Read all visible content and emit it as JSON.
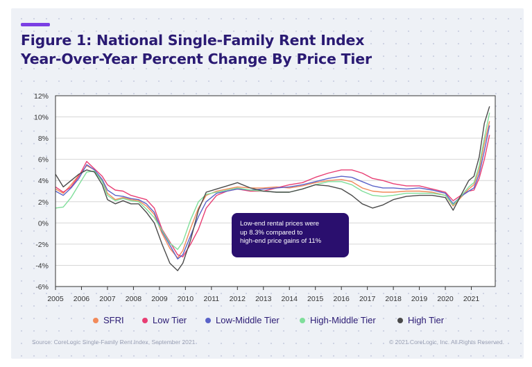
{
  "header": {
    "title_line1": "Figure 1: National Single-Family Rent Index",
    "title_line2": "Year-Over-Year Percent Change By Price Tier"
  },
  "colors": {
    "background": "#eef1f6",
    "accent": "#7b3fe4",
    "title": "#2a1a73",
    "callout_bg": "#2a0f6e"
  },
  "annotation": {
    "line1": "Low-end rental prices were",
    "line2": "up 8.3% compared to",
    "line3": "high-end price gains of 11%"
  },
  "footer": {
    "source": "Source: CoreLogic Single-Family Rent Index, September 2021",
    "copyright": "© 2021 CoreLogic, Inc. All Rights Reserved."
  },
  "chart_data": {
    "type": "line",
    "title": "Figure 1: National Single-Family Rent Index Year-Over-Year Percent Change By Price Tier",
    "xlabel": "",
    "ylabel": "",
    "xlim": [
      2005,
      2021.92
    ],
    "ylim": [
      -6,
      12
    ],
    "y_ticks": [
      "12%",
      "10%",
      "8%",
      "6%",
      "4%",
      "2%",
      "0%",
      "-2%",
      "-4%",
      "-6%"
    ],
    "y_tick_values": [
      12,
      10,
      8,
      6,
      4,
      2,
      0,
      -2,
      -4,
      -6
    ],
    "x_ticks": [
      "2005",
      "2006",
      "2007",
      "2008",
      "2009",
      "2010",
      "2011",
      "2012",
      "2013",
      "2014",
      "2015",
      "2016",
      "2017",
      "2018",
      "2019",
      "2020",
      "2021"
    ],
    "x_tick_values": [
      2005,
      2006,
      2007,
      2008,
      2009,
      2010,
      2011,
      2012,
      2013,
      2014,
      2015,
      2016,
      2017,
      2018,
      2019,
      2020,
      2021
    ],
    "grid": "horizontal",
    "legend_position": "bottom",
    "series": [
      {
        "name": "SFRI",
        "color": "#f28a5a",
        "points": [
          [
            2005.0,
            3.2
          ],
          [
            2005.3,
            2.8
          ],
          [
            2005.6,
            3.6
          ],
          [
            2005.9,
            4.5
          ],
          [
            2006.2,
            5.4
          ],
          [
            2006.5,
            5.0
          ],
          [
            2006.8,
            4.0
          ],
          [
            2007.0,
            2.8
          ],
          [
            2007.3,
            2.2
          ],
          [
            2007.6,
            2.4
          ],
          [
            2007.9,
            2.2
          ],
          [
            2008.2,
            2.1
          ],
          [
            2008.5,
            1.6
          ],
          [
            2008.8,
            0.8
          ],
          [
            2009.1,
            -1.0
          ],
          [
            2009.4,
            -2.4
          ],
          [
            2009.7,
            -3.3
          ],
          [
            2009.9,
            -2.6
          ],
          [
            2010.2,
            -0.5
          ],
          [
            2010.5,
            1.4
          ],
          [
            2010.8,
            2.6
          ],
          [
            2011.2,
            3.0
          ],
          [
            2011.6,
            3.2
          ],
          [
            2012.0,
            3.4
          ],
          [
            2012.5,
            3.3
          ],
          [
            2013.0,
            3.3
          ],
          [
            2013.5,
            3.4
          ],
          [
            2014.0,
            3.3
          ],
          [
            2014.5,
            3.5
          ],
          [
            2015.0,
            3.8
          ],
          [
            2015.5,
            4.0
          ],
          [
            2016.0,
            4.1
          ],
          [
            2016.4,
            3.9
          ],
          [
            2016.8,
            3.3
          ],
          [
            2017.2,
            3.0
          ],
          [
            2017.6,
            2.9
          ],
          [
            2018.0,
            2.9
          ],
          [
            2018.5,
            3.0
          ],
          [
            2019.0,
            3.0
          ],
          [
            2019.5,
            2.9
          ],
          [
            2020.0,
            2.6
          ],
          [
            2020.3,
            1.6
          ],
          [
            2020.6,
            2.4
          ],
          [
            2020.9,
            3.2
          ],
          [
            2021.1,
            3.6
          ],
          [
            2021.3,
            5.0
          ],
          [
            2021.5,
            7.5
          ],
          [
            2021.7,
            9.6
          ]
        ]
      },
      {
        "name": "Low Tier",
        "color": "#e83e73",
        "points": [
          [
            2005.0,
            3.4
          ],
          [
            2005.3,
            2.9
          ],
          [
            2005.6,
            3.4
          ],
          [
            2005.9,
            4.4
          ],
          [
            2006.2,
            5.8
          ],
          [
            2006.5,
            5.1
          ],
          [
            2006.8,
            4.4
          ],
          [
            2007.0,
            3.6
          ],
          [
            2007.3,
            3.1
          ],
          [
            2007.6,
            3.0
          ],
          [
            2007.9,
            2.6
          ],
          [
            2008.2,
            2.4
          ],
          [
            2008.5,
            2.2
          ],
          [
            2008.8,
            1.4
          ],
          [
            2009.1,
            -0.6
          ],
          [
            2009.4,
            -1.8
          ],
          [
            2009.7,
            -3.0
          ],
          [
            2009.9,
            -3.2
          ],
          [
            2010.2,
            -2.0
          ],
          [
            2010.5,
            -0.6
          ],
          [
            2010.8,
            1.4
          ],
          [
            2011.2,
            2.6
          ],
          [
            2011.6,
            3.0
          ],
          [
            2012.0,
            3.2
          ],
          [
            2012.5,
            3.0
          ],
          [
            2013.0,
            3.0
          ],
          [
            2013.5,
            3.3
          ],
          [
            2014.0,
            3.6
          ],
          [
            2014.5,
            3.8
          ],
          [
            2015.0,
            4.3
          ],
          [
            2015.5,
            4.7
          ],
          [
            2016.0,
            5.0
          ],
          [
            2016.4,
            5.0
          ],
          [
            2016.8,
            4.7
          ],
          [
            2017.2,
            4.2
          ],
          [
            2017.6,
            4.0
          ],
          [
            2018.0,
            3.7
          ],
          [
            2018.5,
            3.5
          ],
          [
            2019.0,
            3.5
          ],
          [
            2019.5,
            3.2
          ],
          [
            2020.0,
            2.9
          ],
          [
            2020.3,
            2.1
          ],
          [
            2020.6,
            2.6
          ],
          [
            2020.9,
            3.0
          ],
          [
            2021.1,
            3.1
          ],
          [
            2021.3,
            4.2
          ],
          [
            2021.5,
            6.0
          ],
          [
            2021.7,
            8.3
          ]
        ]
      },
      {
        "name": "Low-Middle Tier",
        "color": "#5a63c8",
        "points": [
          [
            2005.0,
            3.0
          ],
          [
            2005.3,
            2.6
          ],
          [
            2005.6,
            3.3
          ],
          [
            2005.9,
            4.2
          ],
          [
            2006.2,
            5.5
          ],
          [
            2006.5,
            5.0
          ],
          [
            2006.8,
            4.1
          ],
          [
            2007.0,
            3.1
          ],
          [
            2007.3,
            2.6
          ],
          [
            2007.6,
            2.5
          ],
          [
            2007.9,
            2.3
          ],
          [
            2008.2,
            2.2
          ],
          [
            2008.5,
            1.8
          ],
          [
            2008.8,
            1.0
          ],
          [
            2009.1,
            -0.8
          ],
          [
            2009.4,
            -2.1
          ],
          [
            2009.7,
            -3.4
          ],
          [
            2009.9,
            -3.0
          ],
          [
            2010.2,
            -1.2
          ],
          [
            2010.5,
            0.6
          ],
          [
            2010.8,
            2.0
          ],
          [
            2011.2,
            2.8
          ],
          [
            2011.6,
            3.0
          ],
          [
            2012.0,
            3.2
          ],
          [
            2012.5,
            3.1
          ],
          [
            2013.0,
            3.2
          ],
          [
            2013.5,
            3.3
          ],
          [
            2014.0,
            3.4
          ],
          [
            2014.5,
            3.6
          ],
          [
            2015.0,
            3.9
          ],
          [
            2015.5,
            4.2
          ],
          [
            2016.0,
            4.4
          ],
          [
            2016.4,
            4.3
          ],
          [
            2016.8,
            3.9
          ],
          [
            2017.2,
            3.5
          ],
          [
            2017.6,
            3.3
          ],
          [
            2018.0,
            3.3
          ],
          [
            2018.5,
            3.2
          ],
          [
            2019.0,
            3.3
          ],
          [
            2019.5,
            3.1
          ],
          [
            2020.0,
            2.8
          ],
          [
            2020.3,
            1.8
          ],
          [
            2020.6,
            2.5
          ],
          [
            2020.9,
            3.0
          ],
          [
            2021.1,
            3.3
          ],
          [
            2021.3,
            4.6
          ],
          [
            2021.5,
            6.8
          ],
          [
            2021.7,
            9.2
          ]
        ]
      },
      {
        "name": "High-Middle Tier",
        "color": "#7fde9a",
        "points": [
          [
            2005.0,
            1.4
          ],
          [
            2005.3,
            1.5
          ],
          [
            2005.6,
            2.4
          ],
          [
            2005.9,
            3.6
          ],
          [
            2006.2,
            4.8
          ],
          [
            2006.5,
            4.9
          ],
          [
            2006.8,
            3.9
          ],
          [
            2007.0,
            2.6
          ],
          [
            2007.3,
            2.1
          ],
          [
            2007.6,
            2.3
          ],
          [
            2007.9,
            2.1
          ],
          [
            2008.2,
            2.0
          ],
          [
            2008.5,
            1.3
          ],
          [
            2008.8,
            0.5
          ],
          [
            2009.1,
            -0.7
          ],
          [
            2009.4,
            -1.9
          ],
          [
            2009.7,
            -2.5
          ],
          [
            2009.9,
            -1.8
          ],
          [
            2010.2,
            0.3
          ],
          [
            2010.5,
            2.0
          ],
          [
            2010.8,
            2.7
          ],
          [
            2011.2,
            2.9
          ],
          [
            2011.6,
            3.1
          ],
          [
            2012.0,
            3.3
          ],
          [
            2012.5,
            3.1
          ],
          [
            2013.0,
            3.0
          ],
          [
            2013.5,
            2.9
          ],
          [
            2014.0,
            2.9
          ],
          [
            2014.5,
            3.2
          ],
          [
            2015.0,
            3.6
          ],
          [
            2015.5,
            3.9
          ],
          [
            2016.0,
            3.9
          ],
          [
            2016.4,
            3.6
          ],
          [
            2016.8,
            3.0
          ],
          [
            2017.2,
            2.6
          ],
          [
            2017.6,
            2.5
          ],
          [
            2018.0,
            2.6
          ],
          [
            2018.5,
            2.8
          ],
          [
            2019.0,
            2.8
          ],
          [
            2019.5,
            2.8
          ],
          [
            2020.0,
            2.6
          ],
          [
            2020.3,
            1.7
          ],
          [
            2020.6,
            2.5
          ],
          [
            2020.9,
            3.4
          ],
          [
            2021.1,
            3.8
          ],
          [
            2021.3,
            5.4
          ],
          [
            2021.5,
            8.0
          ],
          [
            2021.7,
            10.4
          ]
        ]
      },
      {
        "name": "High Tier",
        "color": "#4a4a4a",
        "points": [
          [
            2005.0,
            4.6
          ],
          [
            2005.3,
            3.4
          ],
          [
            2005.6,
            4.0
          ],
          [
            2005.9,
            4.6
          ],
          [
            2006.2,
            5.0
          ],
          [
            2006.5,
            4.8
          ],
          [
            2006.8,
            3.6
          ],
          [
            2007.0,
            2.2
          ],
          [
            2007.3,
            1.8
          ],
          [
            2007.6,
            2.1
          ],
          [
            2007.9,
            1.8
          ],
          [
            2008.2,
            1.8
          ],
          [
            2008.5,
            1.0
          ],
          [
            2008.8,
            0.0
          ],
          [
            2009.1,
            -2.0
          ],
          [
            2009.4,
            -3.8
          ],
          [
            2009.7,
            -4.5
          ],
          [
            2009.9,
            -3.8
          ],
          [
            2010.2,
            -1.6
          ],
          [
            2010.5,
            1.2
          ],
          [
            2010.8,
            2.9
          ],
          [
            2011.2,
            3.2
          ],
          [
            2011.6,
            3.5
          ],
          [
            2012.0,
            3.8
          ],
          [
            2012.5,
            3.3
          ],
          [
            2013.0,
            3.0
          ],
          [
            2013.5,
            2.9
          ],
          [
            2014.0,
            2.9
          ],
          [
            2014.5,
            3.2
          ],
          [
            2015.0,
            3.6
          ],
          [
            2015.5,
            3.5
          ],
          [
            2016.0,
            3.2
          ],
          [
            2016.4,
            2.6
          ],
          [
            2016.8,
            1.8
          ],
          [
            2017.2,
            1.4
          ],
          [
            2017.6,
            1.7
          ],
          [
            2018.0,
            2.2
          ],
          [
            2018.5,
            2.5
          ],
          [
            2019.0,
            2.6
          ],
          [
            2019.5,
            2.6
          ],
          [
            2020.0,
            2.4
          ],
          [
            2020.3,
            1.2
          ],
          [
            2020.6,
            2.6
          ],
          [
            2020.9,
            4.0
          ],
          [
            2021.1,
            4.4
          ],
          [
            2021.3,
            6.2
          ],
          [
            2021.5,
            9.4
          ],
          [
            2021.7,
            11.0
          ]
        ]
      }
    ]
  }
}
